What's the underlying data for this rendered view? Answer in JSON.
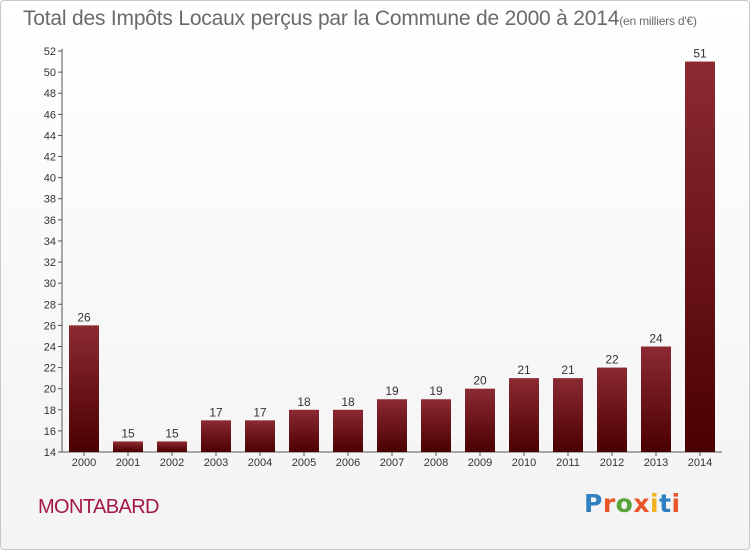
{
  "header": {
    "title": "Total des Impôts Locaux perçus par la Commune de 2000 à 2014",
    "unit": "(en milliers d'€)"
  },
  "footer": {
    "commune": "MONTABARD",
    "logo_text": "Proxiti",
    "logo_colors": [
      "#2f7fc1",
      "#e8562a",
      "#5aa33a",
      "#e8562a",
      "#f2b21c",
      "#2f7fc1",
      "#e8562a"
    ]
  },
  "colors": {
    "bar_top": "#8c2a33",
    "bar_bottom": "#4a0000",
    "axis": "#555555",
    "grid_tick": "#555555",
    "text": "#333333"
  },
  "chart_data": {
    "type": "bar",
    "categories": [
      "2000",
      "2001",
      "2002",
      "2003",
      "2004",
      "2005",
      "2006",
      "2007",
      "2008",
      "2009",
      "2010",
      "2011",
      "2012",
      "2013",
      "2014"
    ],
    "values": [
      26,
      15,
      15,
      17,
      17,
      18,
      18,
      19,
      19,
      20,
      21,
      21,
      22,
      24,
      51
    ],
    "data_labels": [
      "26",
      "15",
      "15",
      "17",
      "17",
      "18",
      "18",
      "19",
      "19",
      "20",
      "21",
      "21",
      "22",
      "24",
      "51"
    ],
    "ylim": [
      14,
      52
    ],
    "yticks": [
      14,
      16,
      18,
      20,
      22,
      24,
      26,
      28,
      30,
      32,
      34,
      36,
      38,
      40,
      42,
      44,
      46,
      48,
      50,
      52
    ],
    "grid": false,
    "xlabel": "",
    "ylabel": ""
  }
}
